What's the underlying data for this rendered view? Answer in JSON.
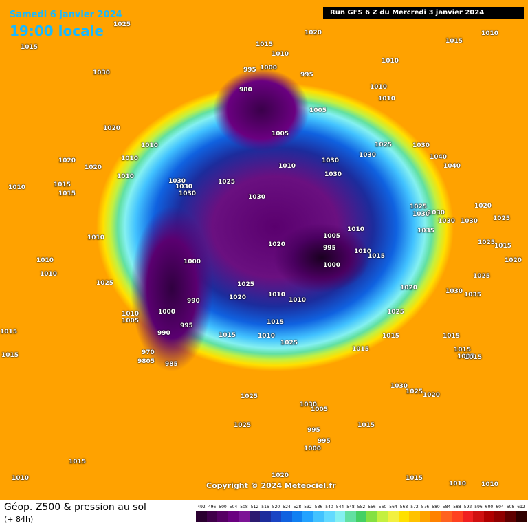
{
  "header": {
    "date": "Samedi 6 janvier 2024",
    "time": "19:00 locale",
    "run": "Run GFS 6 Z du Mercredi 3 janvier 2024"
  },
  "copyright": "Copyright © 2024 Meteociel.fr",
  "footer": {
    "title": "Géop. Z500 & pression au sol",
    "lead": "(+ 84h)"
  },
  "pressure_labels": [
    1025,
    1015,
    1030,
    1020,
    1020,
    1020,
    1010,
    1010,
    1010,
    1015,
    1015,
    1010,
    1010,
    1010,
    1010,
    1025,
    1020,
    1015,
    1010,
    995,
    1000,
    980,
    995,
    1010,
    1015,
    1010,
    1010,
    1010,
    1005,
    1005,
    1025,
    1030,
    1040,
    1040,
    1010,
    1030,
    1030,
    1030,
    1030,
    1030,
    1030,
    1025,
    1030,
    1025,
    1030,
    1030,
    1030,
    1030,
    1020,
    1025,
    1035,
    1025,
    1015,
    1020,
    1010,
    1005,
    995,
    1000,
    1010,
    1015,
    1020,
    1000,
    1025,
    1020,
    990,
    1010,
    1010,
    1010,
    1005,
    1000,
    995,
    990,
    1015,
    1015,
    1010,
    1025,
    1020,
    1025,
    1015,
    1015,
    1025,
    1030,
    1035,
    1015,
    1015,
    1005,
    1015,
    970,
    9805,
    985,
    1015,
    1015,
    1030,
    1025,
    1020,
    1025,
    1030,
    1005,
    1015,
    1025,
    995,
    995,
    1000,
    1010,
    1015,
    1020,
    1010,
    1010,
    1015
  ],
  "colorbar": {
    "ticks": [
      492,
      496,
      500,
      504,
      508,
      512,
      516,
      520,
      524,
      528,
      532,
      536,
      540,
      544,
      548,
      552,
      556,
      560,
      564,
      568,
      572,
      576,
      580,
      584,
      588,
      592,
      596,
      600,
      604,
      608,
      612
    ],
    "colors": [
      "#2a0030",
      "#40004a",
      "#560064",
      "#6a0080",
      "#7c1496",
      "#2c1a70",
      "#1c2c9c",
      "#1a44c4",
      "#1062e0",
      "#1080f2",
      "#22a2ff",
      "#42c2ff",
      "#62daff",
      "#84f0f0",
      "#62e0a2",
      "#44d064",
      "#84e042",
      "#c4f040",
      "#f2f040",
      "#ffe000",
      "#ffc200",
      "#ffa200",
      "#ff8200",
      "#ff6220",
      "#ff4220",
      "#f02020",
      "#d01010",
      "#b00000",
      "#900000",
      "#600000",
      "#300000"
    ]
  }
}
